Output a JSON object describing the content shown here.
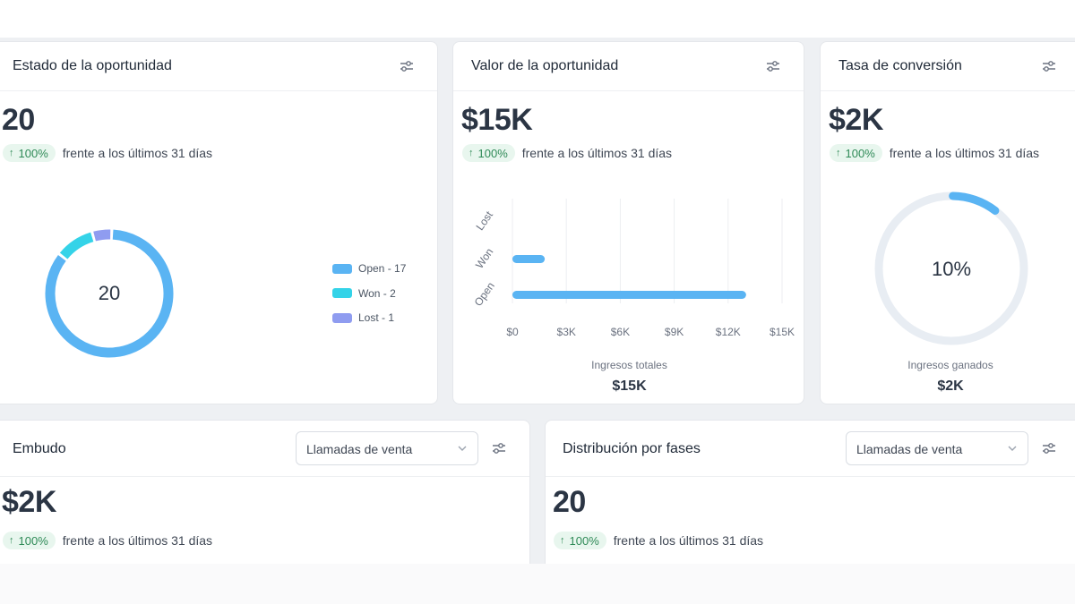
{
  "cards": {
    "estado": {
      "title": "Estado de la oportunidad",
      "icon": "settings-sliders-icon",
      "value": "20",
      "trend": {
        "percent": "100%",
        "direction": "up",
        "label": "frente a los últimos 31 días"
      },
      "donut": {
        "center_label": "20",
        "segments": [
          {
            "name": "Open",
            "value": 17,
            "color": "#5ab4f3",
            "legend": "Open - 17"
          },
          {
            "name": "Won",
            "value": 2,
            "color": "#34d3e8",
            "legend": "Won - 2"
          },
          {
            "name": "Lost",
            "value": 1,
            "color": "#8f9cf0",
            "legend": "Lost - 1"
          }
        ]
      }
    },
    "valor": {
      "title": "Valor de la oportunidad",
      "icon": "settings-sliders-icon",
      "value": "$15K",
      "trend": {
        "percent": "100%",
        "direction": "up",
        "label": "frente a los últimos 31 días"
      },
      "caption": "Ingresos totales",
      "caption_value": "$15K"
    },
    "tasa": {
      "title": "Tasa de conversión",
      "icon": "settings-sliders-icon",
      "value": "$2K",
      "trend": {
        "percent": "100%",
        "direction": "up",
        "label": "frente a los últimos 31 días"
      },
      "gauge": {
        "label": "10%",
        "percent": 10,
        "color": "#5ab4f3",
        "track_color": "#e8edf3"
      },
      "caption": "Ingresos ganados",
      "caption_value": "$2K"
    },
    "embudo": {
      "title": "Embudo",
      "icon": "settings-sliders-icon",
      "dropdown": "Llamadas de venta",
      "value": "$2K",
      "trend": {
        "percent": "100%",
        "direction": "up",
        "label": "frente a los últimos 31 días"
      }
    },
    "distribucion": {
      "title": "Distribución por fases",
      "icon": "settings-sliders-icon",
      "dropdown": "Llamadas de venta",
      "value": "20",
      "trend": {
        "percent": "100%",
        "direction": "up",
        "label": "frente a los últimos 31 días"
      }
    }
  },
  "chart_data": {
    "type": "bar",
    "orientation": "horizontal",
    "categories": [
      "Lost",
      "Won",
      "Open"
    ],
    "values": [
      0,
      1800,
      13000
    ],
    "color": "#5ab4f3",
    "x_ticks": [
      "$0",
      "$3K",
      "$6K",
      "$9K",
      "$12K",
      "$15K"
    ],
    "xlim": [
      0,
      15000
    ],
    "grid": "vertical"
  }
}
